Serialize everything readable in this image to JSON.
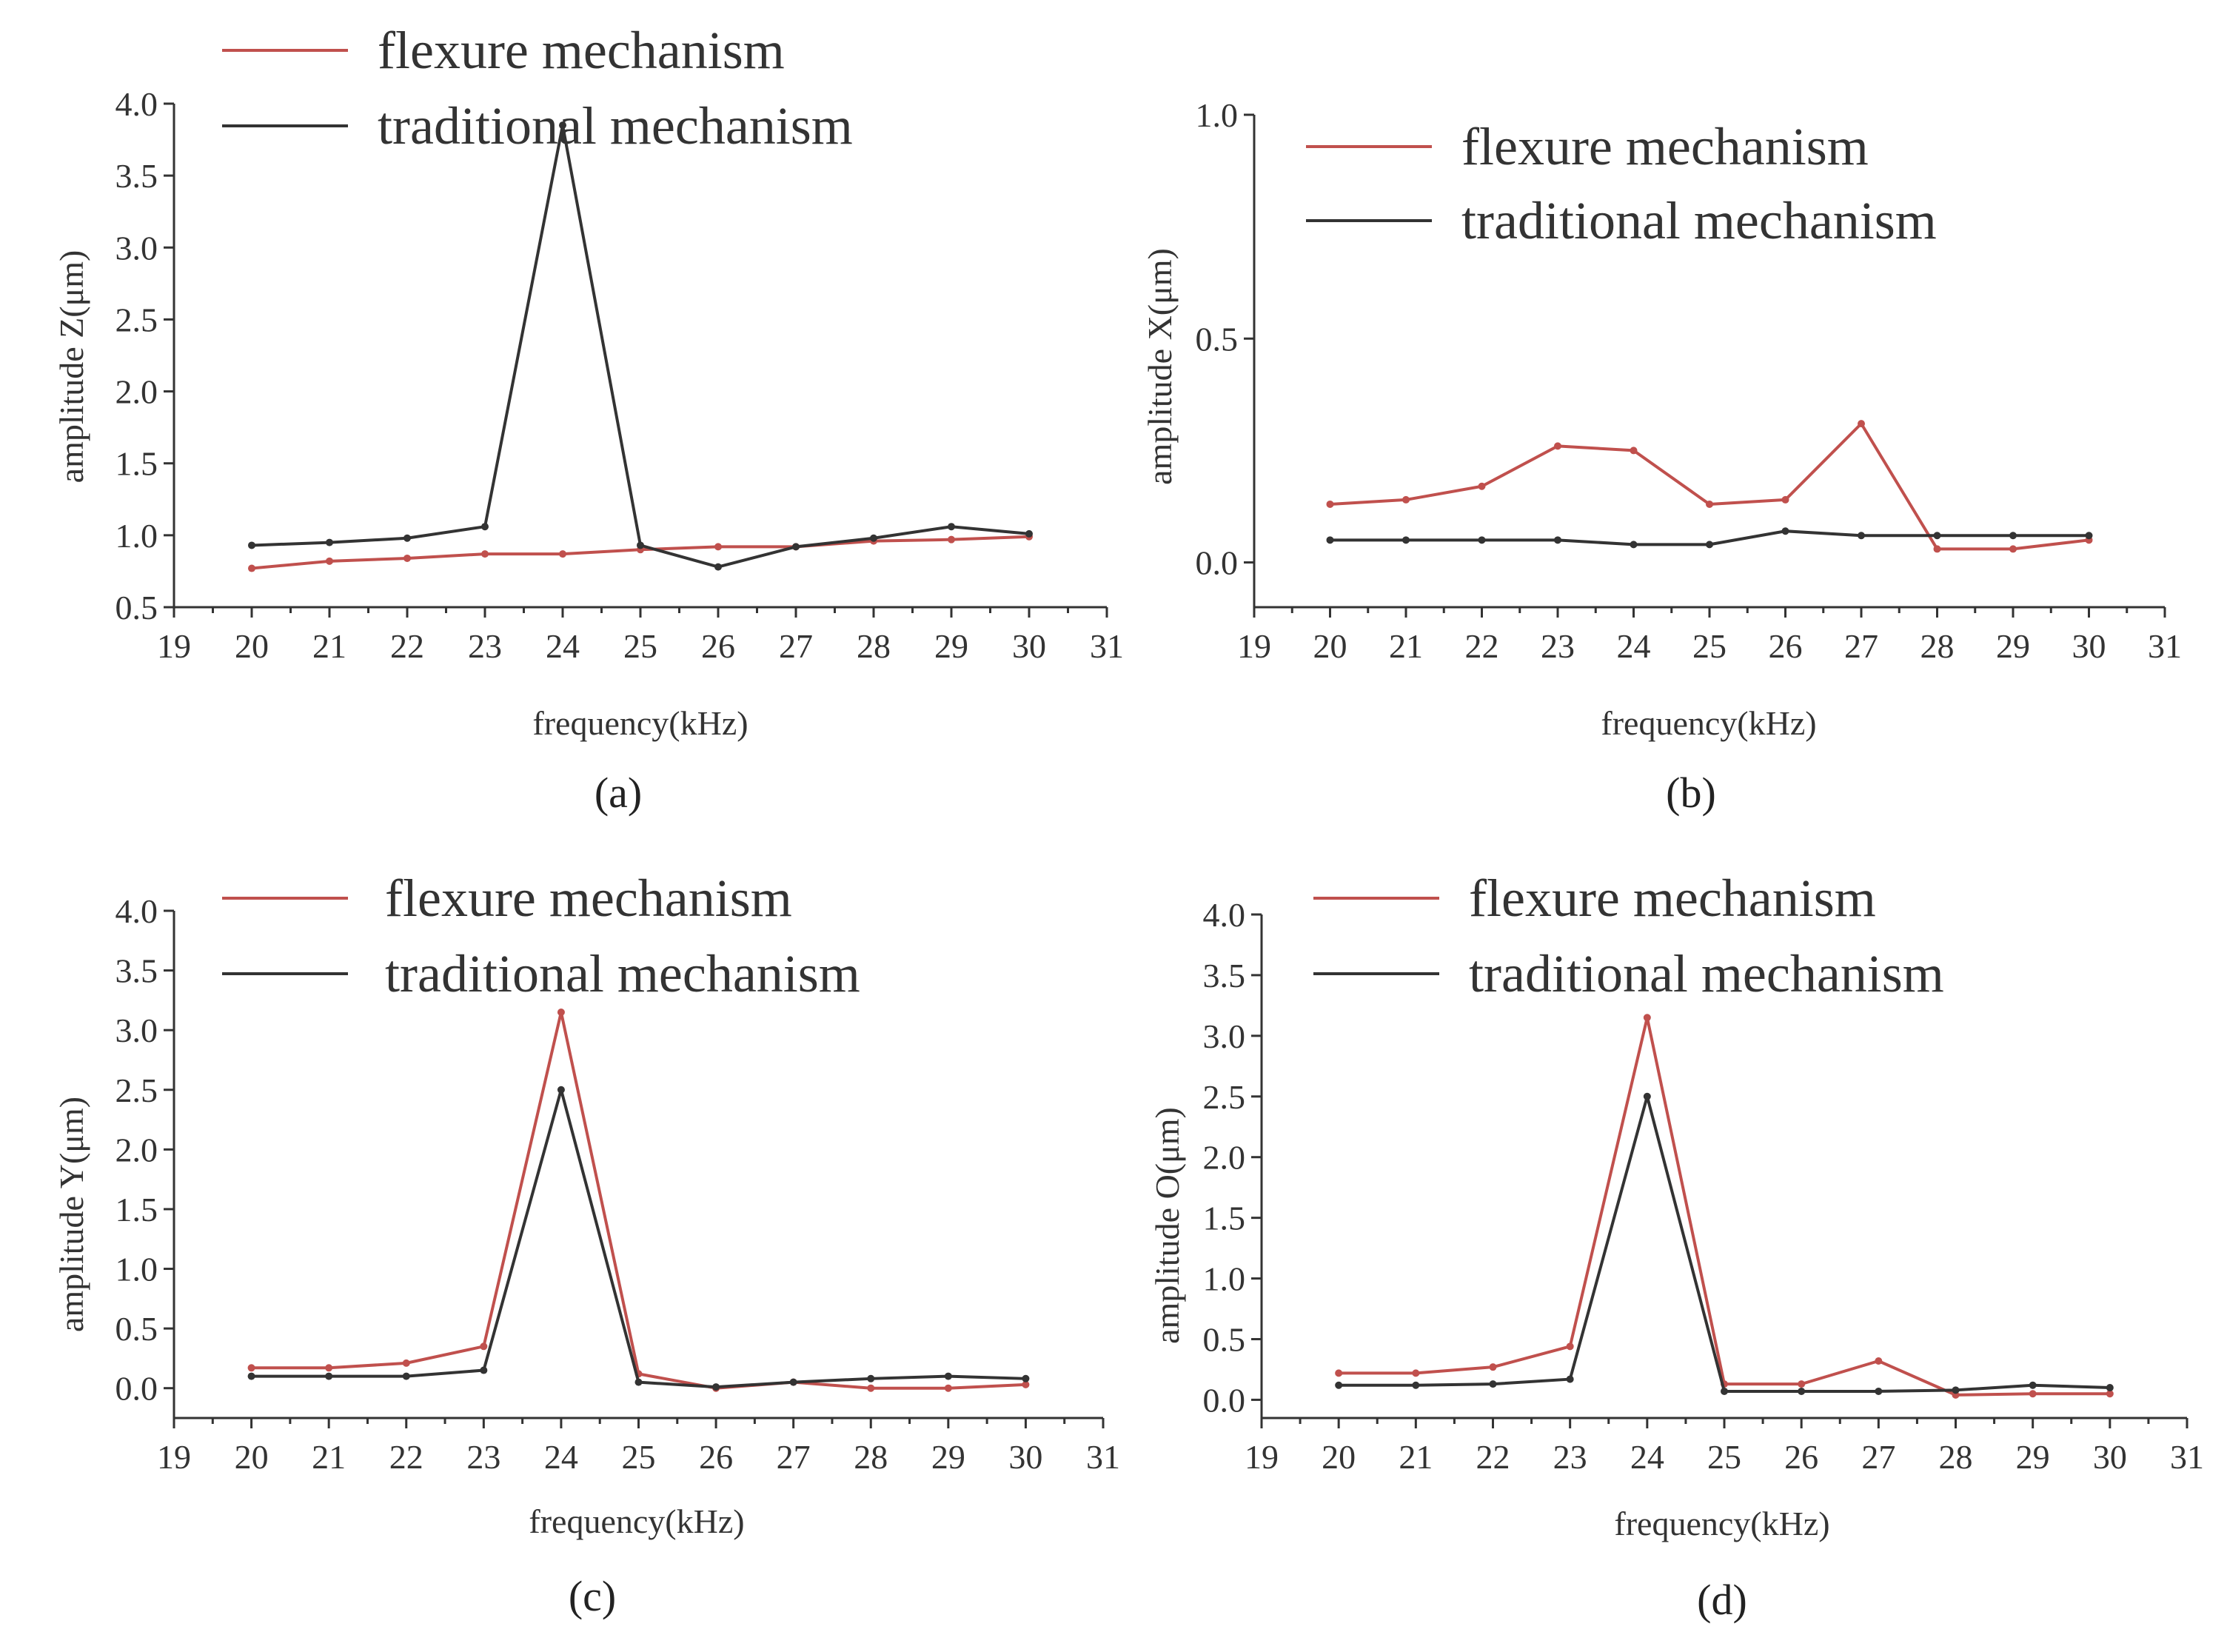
{
  "colors": {
    "flexure": "#c0504d",
    "traditional": "#333333"
  },
  "chart_data": [
    {
      "type": "line",
      "caption": "(a)",
      "xlabel": "frequency(kHz)",
      "ylabel": "amplitude Z(μm)",
      "xlim": [
        19,
        31
      ],
      "ylim": [
        0.5,
        4.0
      ],
      "xticks": [
        "19",
        "20",
        "21",
        "22",
        "23",
        "24",
        "25",
        "26",
        "27",
        "28",
        "29",
        "30",
        "31"
      ],
      "yticks": [
        "0.5",
        "1.0",
        "1.5",
        "2.0",
        "2.5",
        "3.0",
        "3.5",
        "4.0"
      ],
      "x": [
        20,
        21,
        22,
        23,
        24,
        25,
        26,
        27,
        28,
        29,
        30
      ],
      "series": [
        {
          "name": "flexure mechanism",
          "key": "flexure",
          "values": [
            0.77,
            0.82,
            0.84,
            0.87,
            0.87,
            0.9,
            0.92,
            0.92,
            0.96,
            0.97,
            0.99
          ]
        },
        {
          "name": "traditional mechanism",
          "key": "traditional",
          "values": [
            0.93,
            0.95,
            0.98,
            1.06,
            3.85,
            0.93,
            0.78,
            0.92,
            0.98,
            1.06,
            1.01
          ]
        }
      ],
      "legend_position": "top"
    },
    {
      "type": "line",
      "caption": "(b)",
      "xlabel": "frequency(kHz)",
      "ylabel": "amplitude X(μm)",
      "xlim": [
        19,
        31
      ],
      "ylim": [
        -0.1,
        1.0
      ],
      "xticks": [
        "19",
        "20",
        "21",
        "22",
        "23",
        "24",
        "25",
        "26",
        "27",
        "28",
        "29",
        "30",
        "31"
      ],
      "yticks": [
        "0.0",
        "0.5",
        "1.0"
      ],
      "x": [
        20,
        21,
        22,
        23,
        24,
        25,
        26,
        27,
        28,
        29,
        30
      ],
      "series": [
        {
          "name": "flexure mechanism",
          "key": "flexure",
          "values": [
            0.13,
            0.14,
            0.17,
            0.26,
            0.25,
            0.13,
            0.14,
            0.31,
            0.03,
            0.03,
            0.05
          ]
        },
        {
          "name": "traditional mechanism",
          "key": "traditional",
          "values": [
            0.05,
            0.05,
            0.05,
            0.05,
            0.04,
            0.04,
            0.07,
            0.06,
            0.06,
            0.06,
            0.06
          ]
        }
      ],
      "legend_position": "top-right"
    },
    {
      "type": "line",
      "caption": "(c)",
      "xlabel": "frequency(kHz)",
      "ylabel": "amplitude Y(μm)",
      "xlim": [
        19,
        31
      ],
      "ylim": [
        -0.25,
        4.0
      ],
      "xticks": [
        "19",
        "20",
        "21",
        "22",
        "23",
        "24",
        "25",
        "26",
        "27",
        "28",
        "29",
        "30",
        "31"
      ],
      "yticks": [
        "0.0",
        "0.5",
        "1.0",
        "1.5",
        "2.0",
        "2.5",
        "3.0",
        "3.5",
        "4.0"
      ],
      "x": [
        20,
        21,
        22,
        23,
        24,
        25,
        26,
        27,
        28,
        29,
        30
      ],
      "series": [
        {
          "name": "flexure mechanism",
          "key": "flexure",
          "values": [
            0.17,
            0.17,
            0.21,
            0.35,
            3.15,
            0.12,
            0.0,
            0.05,
            0.0,
            0.0,
            0.03
          ]
        },
        {
          "name": "traditional mechanism",
          "key": "traditional",
          "values": [
            0.1,
            0.1,
            0.1,
            0.15,
            2.5,
            0.05,
            0.01,
            0.05,
            0.08,
            0.1,
            0.08
          ]
        }
      ],
      "legend_position": "top"
    },
    {
      "type": "line",
      "caption": "(d)",
      "xlabel": "frequency(kHz)",
      "ylabel": "amplitude O(μm)",
      "xlim": [
        19,
        31
      ],
      "ylim": [
        -0.15,
        4.0
      ],
      "xticks": [
        "19",
        "20",
        "21",
        "22",
        "23",
        "24",
        "25",
        "26",
        "27",
        "28",
        "29",
        "30",
        "31"
      ],
      "yticks": [
        "0.0",
        "0.5",
        "1.0",
        "1.5",
        "2.0",
        "2.5",
        "3.0",
        "3.5",
        "4.0"
      ],
      "x": [
        20,
        21,
        22,
        23,
        24,
        25,
        26,
        27,
        28,
        29,
        30
      ],
      "series": [
        {
          "name": "flexure mechanism",
          "key": "flexure",
          "values": [
            0.22,
            0.22,
            0.27,
            0.44,
            3.15,
            0.13,
            0.13,
            0.32,
            0.04,
            0.05,
            0.05
          ]
        },
        {
          "name": "traditional mechanism",
          "key": "traditional",
          "values": [
            0.12,
            0.12,
            0.13,
            0.17,
            2.5,
            0.07,
            0.07,
            0.07,
            0.08,
            0.12,
            0.1
          ]
        }
      ],
      "legend_position": "top"
    }
  ]
}
